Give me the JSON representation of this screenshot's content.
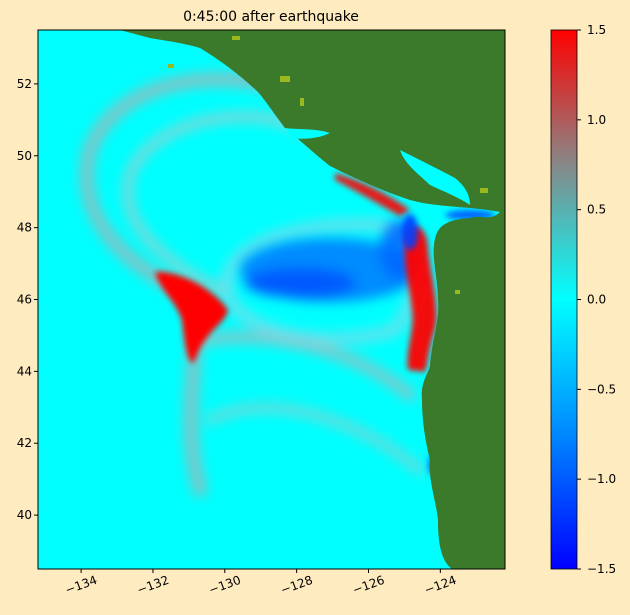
{
  "chart_data": {
    "type": "heatmap",
    "title": "0:45:00 after earthquake",
    "xlabel": "",
    "ylabel": "",
    "xlim": [
      -135.2,
      -122.2
    ],
    "ylim": [
      38.5,
      53.5
    ],
    "xticks": [
      -134,
      -132,
      -130,
      -128,
      -126,
      -124
    ],
    "xtick_labels": [
      "−134",
      "−132",
      "−130",
      "−128",
      "−126",
      "−124"
    ],
    "yticks": [
      40,
      42,
      44,
      46,
      48,
      50,
      52
    ],
    "ytick_labels": [
      "40",
      "42",
      "44",
      "46",
      "48",
      "50",
      "52"
    ],
    "grid": false,
    "colorbar": {
      "range": [
        -1.5,
        1.5
      ],
      "ticks": [
        -1.5,
        -1.0,
        -0.5,
        0.0,
        0.5,
        1.0,
        1.5
      ],
      "tick_labels": [
        "−1.5",
        "−1.0",
        "−0.5",
        "0.0",
        "0.5",
        "1.0",
        "1.5"
      ],
      "colors": [
        {
          "value": -1.5,
          "color": "#0000ff"
        },
        {
          "value": -0.75,
          "color": "#0088ff"
        },
        {
          "value": 0.0,
          "color": "#00ffff"
        },
        {
          "value": 0.75,
          "color": "#888888"
        },
        {
          "value": 1.5,
          "color": "#ff0000"
        }
      ]
    },
    "ocean_color": "#00ffff",
    "land_color": "#3a7a2a",
    "features": [
      {
        "kind": "positive-crest",
        "description_value": 1.5,
        "lon": -131.0,
        "lat": 45.7
      },
      {
        "kind": "positive-coastal",
        "description_value": 1.5,
        "lon": -124.4,
        "lat": 45.0
      },
      {
        "kind": "negative-trough",
        "description_value": -1.0,
        "lon": -127.5,
        "lat": 46.5
      }
    ]
  }
}
